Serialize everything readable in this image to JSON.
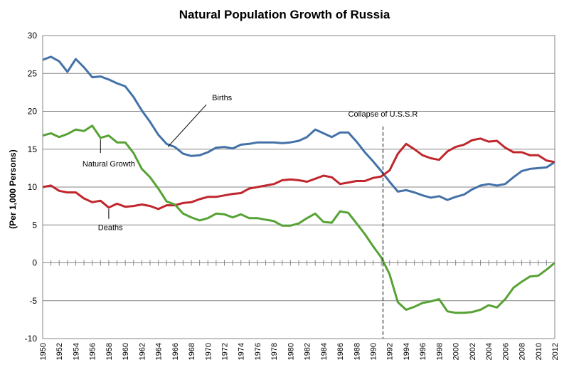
{
  "chart_data": {
    "type": "line",
    "title": "Natural Population Growth of Russia",
    "ylabel": "(Per 1,000 Persons)",
    "xlabel": "",
    "ylim": [
      -10,
      30
    ],
    "yticks": [
      "30",
      "25",
      "20",
      "15",
      "10",
      "5",
      "0",
      "-5",
      "-10"
    ],
    "grid": "horizontal",
    "x": [
      1950,
      1951,
      1952,
      1953,
      1954,
      1955,
      1956,
      1957,
      1958,
      1959,
      1960,
      1961,
      1962,
      1963,
      1964,
      1965,
      1966,
      1967,
      1968,
      1969,
      1970,
      1971,
      1972,
      1973,
      1974,
      1975,
      1976,
      1977,
      1978,
      1979,
      1980,
      1981,
      1982,
      1983,
      1984,
      1985,
      1986,
      1987,
      1988,
      1989,
      1990,
      1991,
      1992,
      1993,
      1994,
      1995,
      1996,
      1997,
      1998,
      1999,
      2000,
      2001,
      2002,
      2003,
      2004,
      2005,
      2006,
      2007,
      2008,
      2009,
      2010,
      2011,
      2012
    ],
    "xtick_labels": [
      "1950",
      "1952",
      "1954",
      "1956",
      "1958",
      "1960",
      "1962",
      "1964",
      "1966",
      "1968",
      "1970",
      "1972",
      "1974",
      "1976",
      "1978",
      "1980",
      "1982",
      "1984",
      "1986",
      "1988",
      "1990",
      "1992",
      "1994",
      "1996",
      "1998",
      "2000",
      "2002",
      "2004",
      "2006",
      "2008",
      "2010",
      "2012"
    ],
    "series": [
      {
        "name": "Births",
        "color": "#4472a8",
        "values": [
          26.8,
          27.2,
          26.6,
          25.2,
          26.9,
          25.8,
          24.5,
          24.6,
          24.2,
          23.7,
          23.3,
          21.9,
          20.1,
          18.6,
          16.9,
          15.7,
          15.3,
          14.4,
          14.1,
          14.2,
          14.6,
          15.2,
          15.3,
          15.1,
          15.6,
          15.7,
          15.9,
          15.9,
          15.9,
          15.8,
          15.9,
          16.1,
          16.6,
          17.6,
          17.1,
          16.6,
          17.2,
          17.2,
          16.0,
          14.6,
          13.4,
          12.1,
          10.7,
          9.4,
          9.6,
          9.3,
          8.9,
          8.6,
          8.8,
          8.3,
          8.7,
          9.0,
          9.7,
          10.2,
          10.4,
          10.2,
          10.4,
          11.3,
          12.1,
          12.4,
          12.5,
          12.6,
          13.3
        ]
      },
      {
        "name": "Deaths",
        "color": "#c0272d",
        "values": [
          10.0,
          10.2,
          9.5,
          9.3,
          9.3,
          8.5,
          8.0,
          8.2,
          7.3,
          7.8,
          7.4,
          7.5,
          7.7,
          7.5,
          7.1,
          7.6,
          7.6,
          7.9,
          8.0,
          8.4,
          8.7,
          8.7,
          8.9,
          9.1,
          9.2,
          9.8,
          10.0,
          10.2,
          10.4,
          10.9,
          11.0,
          10.9,
          10.7,
          11.1,
          11.5,
          11.3,
          10.4,
          10.6,
          10.8,
          10.8,
          11.2,
          11.4,
          12.2,
          14.4,
          15.7,
          15.0,
          14.2,
          13.8,
          13.6,
          14.7,
          15.3,
          15.6,
          16.2,
          16.4,
          16.0,
          16.1,
          15.2,
          14.6,
          14.6,
          14.2,
          14.2,
          13.5,
          13.3
        ]
      },
      {
        "name": "Natural Growth",
        "color": "#56a234",
        "values": [
          16.8,
          17.1,
          16.6,
          17.0,
          17.6,
          17.4,
          18.1,
          16.5,
          16.8,
          15.9,
          15.9,
          14.5,
          12.4,
          11.3,
          9.8,
          8.1,
          7.7,
          6.5,
          6.0,
          5.6,
          5.9,
          6.5,
          6.4,
          6.0,
          6.4,
          5.9,
          5.9,
          5.7,
          5.5,
          4.9,
          4.9,
          5.2,
          5.9,
          6.5,
          5.4,
          5.3,
          6.8,
          6.6,
          5.2,
          3.8,
          2.2,
          0.7,
          -1.5,
          -5.2,
          -6.2,
          -5.8,
          -5.3,
          -5.1,
          -4.8,
          -6.4,
          -6.6,
          -6.6,
          -6.5,
          -6.2,
          -5.6,
          -5.9,
          -4.8,
          -3.3,
          -2.5,
          -1.8,
          -1.7,
          -0.9,
          0.0
        ]
      }
    ],
    "annotations": [
      {
        "text": "Births",
        "series": "Births"
      },
      {
        "text": "Natural Growth",
        "series": "Natural Growth"
      },
      {
        "text": "Deaths",
        "series": "Deaths"
      },
      {
        "text": "Collapse of U.S.S.R",
        "x": 1991.2
      }
    ]
  }
}
